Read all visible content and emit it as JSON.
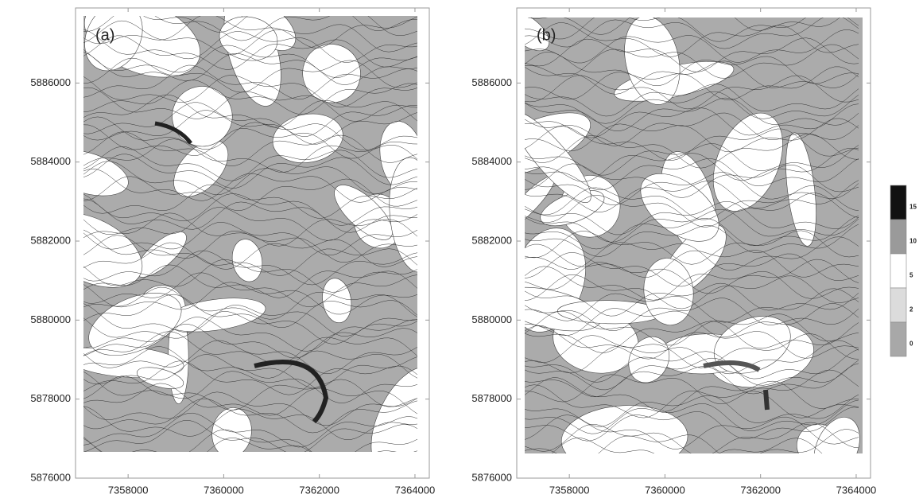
{
  "chart_data": [
    {
      "type": "contour",
      "label": "(a)",
      "xlim": [
        7356900,
        7364300
      ],
      "ylim": [
        5876000,
        5887900
      ],
      "xticks": [
        7358000,
        7360000,
        7362000,
        7364000
      ],
      "yticks": [
        5876000,
        5878000,
        5880000,
        5882000,
        5884000,
        5886000
      ]
    },
    {
      "type": "contour",
      "label": "(b)",
      "xlim": [
        7356900,
        7364300
      ],
      "ylim": [
        5876000,
        5887900
      ],
      "xticks": [
        7358000,
        7360000,
        7362000,
        7364000
      ],
      "yticks": [
        5876000,
        5878000,
        5880000,
        5882000,
        5884000,
        5886000
      ]
    }
  ],
  "colorbar": {
    "ticks": [
      15,
      10,
      5,
      2,
      0
    ],
    "colors": [
      "#111111",
      "#9a9a9a",
      "#ffffff",
      "#dcdcdc",
      "#a8a8a8"
    ]
  }
}
